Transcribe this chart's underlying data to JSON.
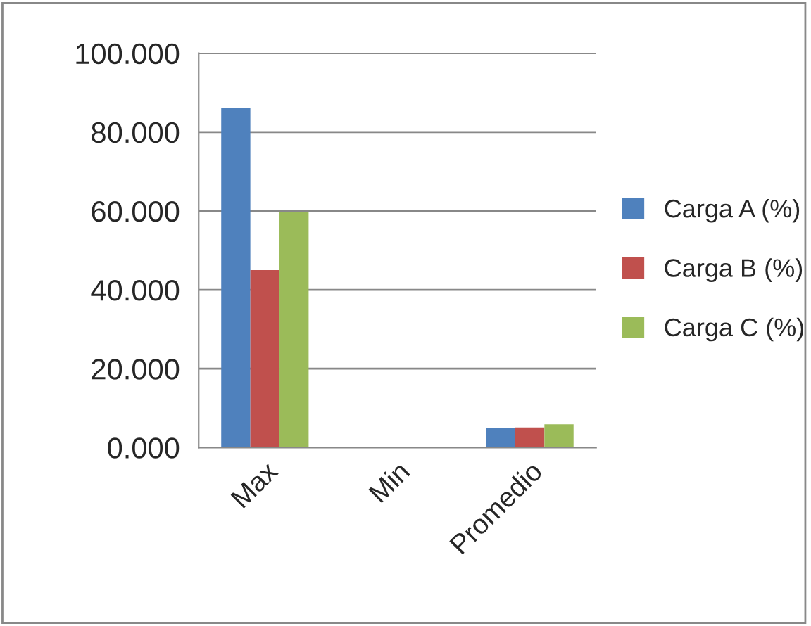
{
  "chart_data": {
    "type": "bar",
    "categories": [
      "Max",
      "Min",
      "Promedio"
    ],
    "series": [
      {
        "name": "Carga A (%)",
        "color": "#4f81bd",
        "values": [
          86.1,
          0,
          5.0
        ]
      },
      {
        "name": "Carga B (%)",
        "color": "#c0504d",
        "values": [
          45.0,
          0,
          5.1
        ]
      },
      {
        "name": "Carga C (%)",
        "color": "#9bbb59",
        "values": [
          59.7,
          0,
          5.9
        ]
      }
    ],
    "ylim": [
      0,
      100
    ],
    "yticks": [
      {
        "value": 0,
        "label": "0.000"
      },
      {
        "value": 20,
        "label": "20.000"
      },
      {
        "value": 40,
        "label": "40.000"
      },
      {
        "value": 60,
        "label": "60.000"
      },
      {
        "value": 80,
        "label": "80.000"
      },
      {
        "value": 100,
        "label": "100.000"
      }
    ],
    "grid": "y",
    "legend": "right"
  }
}
